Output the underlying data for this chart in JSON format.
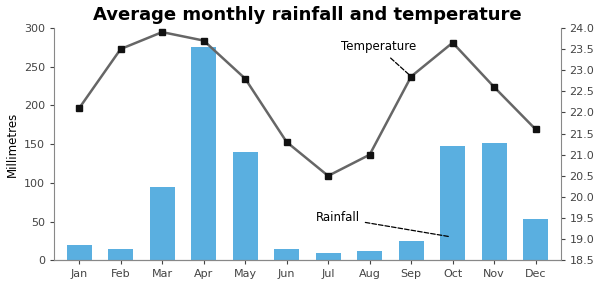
{
  "title": "Average monthly rainfall and temperature",
  "months": [
    "Jan",
    "Feb",
    "Mar",
    "Apr",
    "May",
    "Jun",
    "Jul",
    "Aug",
    "Sep",
    "Oct",
    "Nov",
    "Dec"
  ],
  "rainfall": [
    20,
    15,
    95,
    275,
    140,
    15,
    10,
    12,
    25,
    148,
    152,
    53
  ],
  "temperature": [
    22.1,
    23.5,
    23.9,
    23.7,
    22.8,
    21.3,
    20.5,
    21.0,
    22.85,
    23.65,
    22.6,
    21.6
  ],
  "bar_color": "#5aafe0",
  "line_color": "#666666",
  "marker_color": "#111111",
  "left_ylim": [
    0,
    300
  ],
  "left_yticks": [
    0,
    50,
    100,
    150,
    200,
    250,
    300
  ],
  "right_ylim": [
    18.5,
    24.0
  ],
  "right_yticks": [
    18.5,
    19.0,
    19.5,
    20.0,
    20.5,
    21.0,
    21.5,
    22.0,
    22.5,
    23.0,
    23.5,
    24.0
  ],
  "ylabel_left": "Millimetres",
  "temp_label": "Temperature",
  "rain_label": "Rainfall",
  "title_fontsize": 13,
  "label_fontsize": 8.5,
  "tick_fontsize": 8
}
